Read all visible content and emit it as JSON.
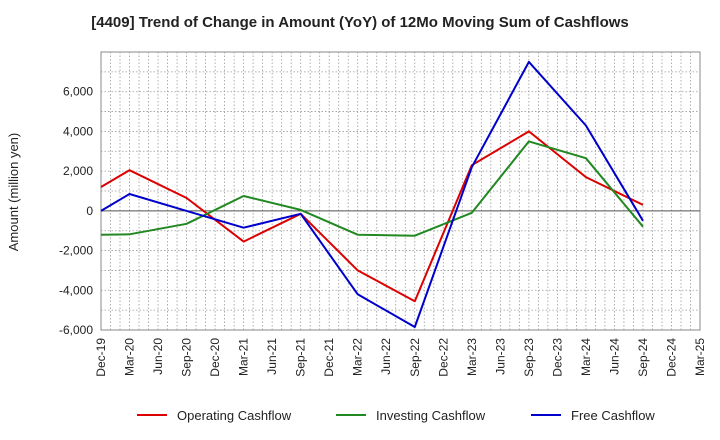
{
  "chart_data": {
    "type": "line",
    "title": "[4409]  Trend of Change in Amount (YoY) of 12Mo Moving Sum of Cashflows",
    "xlabel": "",
    "ylabel": "Amount (million yen)",
    "ylim": [
      -6000,
      8000
    ],
    "yticks": [
      -6000,
      -4000,
      -2000,
      0,
      2000,
      4000,
      6000
    ],
    "ytick_labels": [
      "-6,000",
      "-4,000",
      "-2,000",
      "0",
      "2,000",
      "4,000",
      "6,000"
    ],
    "categories": [
      "Dec-19",
      "Mar-20",
      "Jun-20",
      "Sep-20",
      "Dec-20",
      "Mar-21",
      "Jun-21",
      "Sep-21",
      "Dec-21",
      "Mar-22",
      "Jun-22",
      "Sep-22",
      "Dec-22",
      "Mar-23",
      "Jun-23",
      "Sep-23",
      "Dec-23",
      "Mar-24",
      "Jun-24",
      "Sep-24",
      "Dec-24",
      "Mar-25"
    ],
    "grid": true,
    "legend_position": "bottom",
    "series": [
      {
        "name": "Operating Cashflow",
        "color": "#dd0000",
        "points": [
          [
            0,
            1200
          ],
          [
            1,
            2050
          ],
          [
            3,
            650
          ],
          [
            5,
            -1550
          ],
          [
            7,
            -150
          ],
          [
            9,
            -3000
          ],
          [
            11,
            -4550
          ],
          [
            13,
            2300
          ],
          [
            15,
            4000
          ],
          [
            17,
            1700
          ],
          [
            19,
            300
          ]
        ]
      },
      {
        "name": "Investing Cashflow",
        "color": "#228822",
        "points": [
          [
            0,
            -1200
          ],
          [
            1,
            -1180
          ],
          [
            3,
            -650
          ],
          [
            5,
            750
          ],
          [
            7,
            50
          ],
          [
            9,
            -1200
          ],
          [
            11,
            -1250
          ],
          [
            13,
            -100
          ],
          [
            15,
            3500
          ],
          [
            17,
            2650
          ],
          [
            19,
            -800
          ]
        ]
      },
      {
        "name": "Free Cashflow",
        "color": "#0000cc",
        "points": [
          [
            0,
            0
          ],
          [
            1,
            850
          ],
          [
            3,
            0
          ],
          [
            5,
            -850
          ],
          [
            7,
            -150
          ],
          [
            9,
            -4200
          ],
          [
            11,
            -5850
          ],
          [
            13,
            2200
          ],
          [
            15,
            7500
          ],
          [
            17,
            4300
          ],
          [
            19,
            -500
          ]
        ]
      }
    ]
  }
}
